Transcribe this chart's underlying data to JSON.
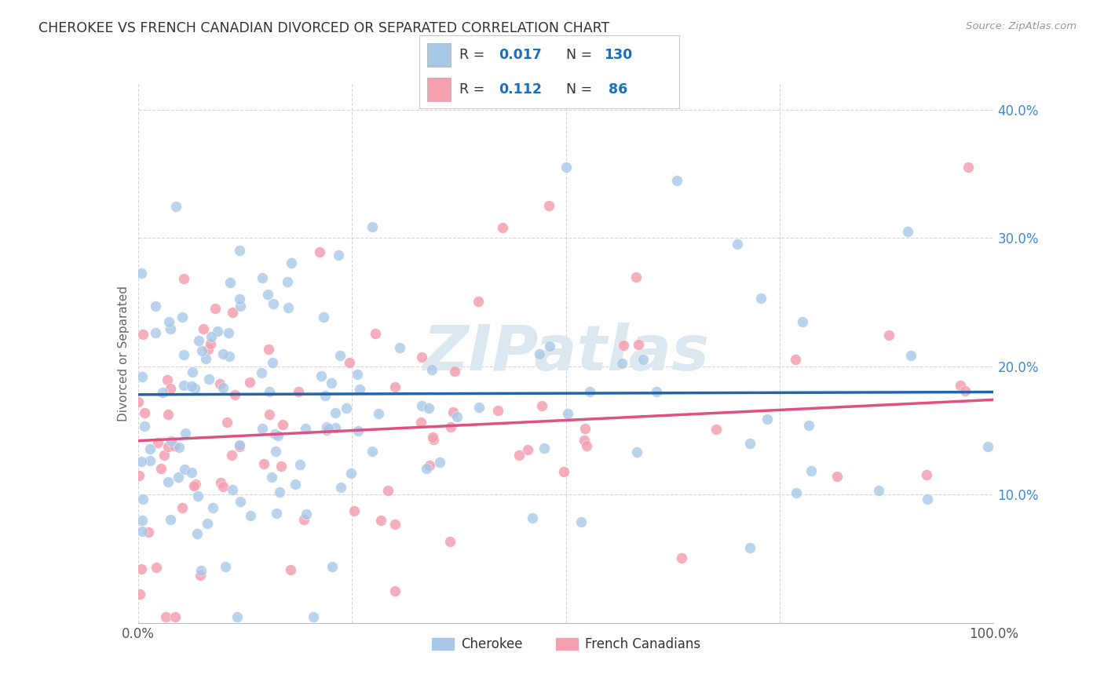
{
  "title": "CHEROKEE VS FRENCH CANADIAN DIVORCED OR SEPARATED CORRELATION CHART",
  "source": "Source: ZipAtlas.com",
  "ylabel": "Divorced or Separated",
  "xlim": [
    0,
    1.0
  ],
  "ylim": [
    0,
    0.42
  ],
  "cherokee_R": 0.017,
  "cherokee_N": 130,
  "french_R": 0.112,
  "french_N": 86,
  "cherokee_color": "#a8c8e8",
  "cherokee_line_color": "#2166ac",
  "french_color": "#f4a0b0",
  "french_line_color": "#e05080",
  "legend_text_color": "#1a6fba",
  "watermark": "ZIPatlas",
  "watermark_color": "#dce8f0",
  "background_color": "#ffffff",
  "grid_color": "#cccccc",
  "title_color": "#333333",
  "yaxis_label_color": "#4488cc",
  "xaxis_label_color": "#555555"
}
